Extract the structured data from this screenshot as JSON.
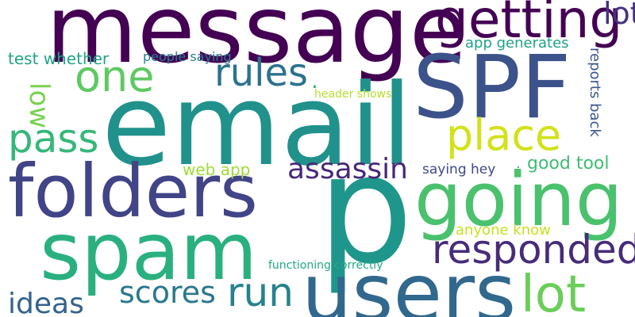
{
  "words": {
    "message": {
      "text": "message",
      "color": "#440154"
    },
    "email": {
      "text": "email",
      "color": "#21918c"
    },
    "spf": {
      "text": "SPF",
      "color": "#3b528b"
    },
    "folders": {
      "text": "folders",
      "color": "#414487"
    },
    "p": {
      "text": "p",
      "color": "#1f968b"
    },
    "spam": {
      "text": "spam",
      "color": "#2ab07f"
    },
    "going": {
      "text": "going",
      "color": "#4ac16d"
    },
    "users": {
      "text": "users",
      "color": "#31688e"
    },
    "getting": {
      "text": "getting",
      "color": "#440154"
    },
    "one": {
      "text": "one",
      "color": "#5ec962"
    },
    "rules": {
      "text": "rules",
      "color": "#2c728e"
    },
    "place": {
      "text": "place",
      "color": "#d2e21b"
    },
    "pass": {
      "text": "pass",
      "color": "#35b779"
    },
    "lot": {
      "text": "lot",
      "color": "#6ccd5a"
    },
    "responded": {
      "text": "responded",
      "color": "#472c7a"
    },
    "run": {
      "text": "run",
      "color": "#26828e"
    },
    "assassin": {
      "text": "assassin",
      "color": "#482878"
    },
    "scores": {
      "text": "scores",
      "color": "#2a788e"
    },
    "ideas": {
      "text": "ideas",
      "color": "#33638d"
    },
    "lot2": {
      "text": "lot",
      "color": "#46337e"
    },
    "low": {
      "text": "low",
      "color": "#7ad151"
    },
    "good_tool": {
      "text": "good tool",
      "color": "#3fbc73"
    },
    "reports_back": {
      "text": "reports back",
      "color": "#39568c"
    },
    "test_whether": {
      "text": "test whether",
      "color": "#20a386"
    },
    "people_saying": {
      "text": "people saying",
      "color": "#277f8e"
    },
    "app_generates": {
      "text": "app generates",
      "color": "#1fa188"
    },
    "header_shows": {
      "text": "header shows",
      "color": "#b5de2b"
    },
    "web_app": {
      "text": "web app",
      "color": "#a0da39"
    },
    "saying_hey": {
      "text": "saying hey",
      "color": "#3e4989"
    },
    "anyone_know": {
      "text": "anyone know",
      "color": "#c8e020"
    },
    "functioning_correctly": {
      "text": "functioning correctly",
      "color": "#22a884"
    },
    "dot1": {
      "text": ".",
      "color": "#35b779"
    },
    "dot2": {
      "text": ".",
      "color": "#35b779"
    }
  }
}
